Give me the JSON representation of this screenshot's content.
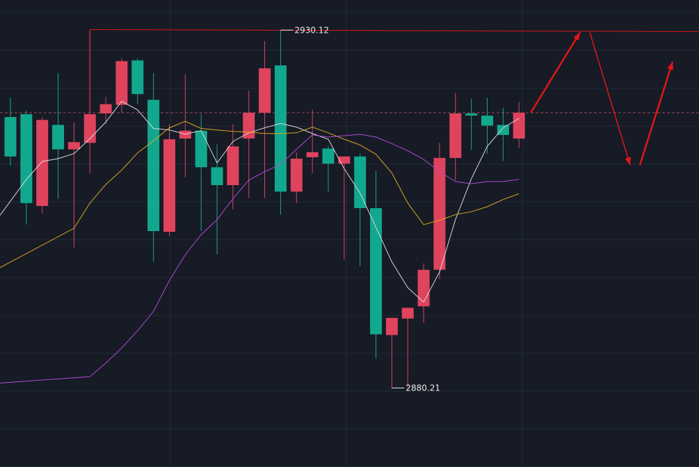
{
  "chart_data": {
    "type": "candlestick",
    "title": "",
    "xlabel": "",
    "ylabel": "",
    "ylim": [
      2869.2,
      2934.32
    ],
    "grid": true,
    "colors": {
      "background": "#161b26",
      "grid": "#232a36",
      "up": "#e0435e",
      "down": "#12a88d",
      "ma_short": "#d9dadd",
      "ma_mid": "#d9a81e",
      "ma_long": "#b34ad1",
      "annotation": "#e01616",
      "dashed_level": "#a04a55"
    },
    "annotations": {
      "high_label": "2930.12",
      "low_label": "2880.21",
      "high_value": 2930.12,
      "low_value": 2880.21,
      "resistance_level": 2930.2,
      "current_level": 2918.6,
      "projection_points": [
        [
          2918.6,
          2929.8
        ],
        [
          2929.8,
          2911.3
        ],
        [
          2911.3,
          2925.7
        ]
      ]
    },
    "candles": [
      {
        "o": 2918.0,
        "h": 2920.7,
        "l": 2911.2,
        "c": 2912.5
      },
      {
        "o": 2918.4,
        "h": 2918.9,
        "l": 2903.0,
        "c": 2906.0
      },
      {
        "o": 2905.6,
        "h": 2918.0,
        "l": 2904.6,
        "c": 2917.6
      },
      {
        "o": 2916.9,
        "h": 2924.1,
        "l": 2906.6,
        "c": 2913.5
      },
      {
        "o": 2913.5,
        "h": 2917.3,
        "l": 2899.8,
        "c": 2914.5
      },
      {
        "o": 2914.4,
        "h": 2930.0,
        "l": 2910.1,
        "c": 2918.4
      },
      {
        "o": 2918.5,
        "h": 2920.8,
        "l": 2917.0,
        "c": 2919.8
      },
      {
        "o": 2919.7,
        "h": 2926.2,
        "l": 2918.6,
        "c": 2925.8
      },
      {
        "o": 2925.9,
        "h": 2926.2,
        "l": 2919.8,
        "c": 2921.2
      },
      {
        "o": 2920.4,
        "h": 2924.1,
        "l": 2897.8,
        "c": 2902.1
      },
      {
        "o": 2902.0,
        "h": 2917.0,
        "l": 2901.4,
        "c": 2914.9
      },
      {
        "o": 2915.0,
        "h": 2924.0,
        "l": 2909.6,
        "c": 2916.1
      },
      {
        "o": 2916.1,
        "h": 2918.4,
        "l": 2902.1,
        "c": 2911.0
      },
      {
        "o": 2911.0,
        "h": 2914.2,
        "l": 2898.9,
        "c": 2908.5
      },
      {
        "o": 2908.5,
        "h": 2917.0,
        "l": 2905.1,
        "c": 2913.9
      },
      {
        "o": 2915.0,
        "h": 2921.7,
        "l": 2906.7,
        "c": 2918.6
      },
      {
        "o": 2918.6,
        "h": 2928.6,
        "l": 2906.7,
        "c": 2924.8
      },
      {
        "o": 2925.2,
        "h": 2930.1,
        "l": 2904.4,
        "c": 2907.6
      },
      {
        "o": 2907.6,
        "h": 2913.1,
        "l": 2906.0,
        "c": 2912.2
      },
      {
        "o": 2912.4,
        "h": 2919.0,
        "l": 2910.2,
        "c": 2913.1
      },
      {
        "o": 2913.6,
        "h": 2914.0,
        "l": 2907.6,
        "c": 2911.5
      },
      {
        "o": 2911.5,
        "h": 2912.2,
        "l": 2898.1,
        "c": 2912.5
      },
      {
        "o": 2912.5,
        "h": 2912.9,
        "l": 2897.2,
        "c": 2905.3
      },
      {
        "o": 2905.3,
        "h": 2910.5,
        "l": 2884.3,
        "c": 2887.7
      },
      {
        "o": 2887.6,
        "h": 2889.8,
        "l": 2880.2,
        "c": 2890.0
      },
      {
        "o": 2889.9,
        "h": 2891.4,
        "l": 2880.2,
        "c": 2891.4
      },
      {
        "o": 2891.6,
        "h": 2897.6,
        "l": 2889.3,
        "c": 2896.7
      },
      {
        "o": 2896.7,
        "h": 2914.4,
        "l": 2895.4,
        "c": 2912.3
      },
      {
        "o": 2912.3,
        "h": 2921.4,
        "l": 2909.2,
        "c": 2918.5
      },
      {
        "o": 2918.5,
        "h": 2920.6,
        "l": 2913.4,
        "c": 2918.2
      },
      {
        "o": 2918.2,
        "h": 2920.7,
        "l": 2912.9,
        "c": 2916.8
      },
      {
        "o": 2916.9,
        "h": 2919.3,
        "l": 2911.9,
        "c": 2915.5
      },
      {
        "o": 2915.0,
        "h": 2920.1,
        "l": 2913.7,
        "c": 2918.6
      }
    ],
    "series": [
      {
        "values": [
          2904.3,
          2909.3,
          2911.8,
          2912.2,
          2912.9,
          2915.0,
          2917.3,
          2920.2,
          2919.0,
          2916.4,
          2916.2,
          2915.6,
          2916.1,
          2911.6,
          2914.6,
          2915.8,
          2916.5,
          2917.1,
          2916.6,
          2915.7,
          2914.9,
          2910.8,
          2907.4,
          2902.6,
          2897.8,
          2894.2,
          2892.2,
          2896.4,
          2903.7,
          2909.4,
          2913.9,
          2916.5,
          2917.8
        ]
      },
      {
        "values": [
          2897.0,
          2902.5,
          2906.0,
          2908.6,
          2910.6,
          2913.0,
          2914.7,
          2916.5,
          2917.4,
          2916.4,
          2916.2,
          2916.0,
          2915.9,
          2915.7,
          2915.7,
          2915.8,
          2916.6,
          2915.8,
          2914.9,
          2914.1,
          2912.8,
          2910.2,
          2906.0,
          2903.0,
          2903.6,
          2904.4,
          2904.8,
          2905.5,
          2906.5,
          2907.3
        ]
      },
      {
        "values": [
          2880.9,
          2881.8,
          2883.7,
          2885.8,
          2888.2,
          2890.9,
          2895.2,
          2898.8,
          2901.6,
          2903.7,
          2906.6,
          2909.2,
          2910.4,
          2911.4,
          2913.5,
          2915.5,
          2915.2,
          2915.4,
          2915.6,
          2915.2,
          2914.3,
          2913.3,
          2912.1,
          2910.4,
          2909.0,
          2908.7,
          2909.0,
          2909.0,
          2909.3
        ]
      }
    ]
  }
}
